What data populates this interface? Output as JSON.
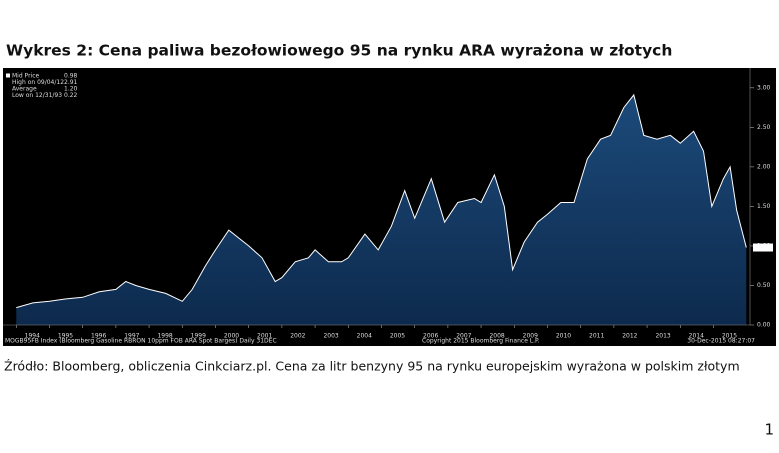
{
  "title": "Wykres 2: Cena paliwa bezołowiowego 95 na rynku ARA wyrażona w złotych",
  "chart_data": {
    "type": "area",
    "x": [
      1994.0,
      1994.5,
      1995.0,
      1995.5,
      1996.0,
      1996.5,
      1997.0,
      1997.3,
      1997.6,
      1998.0,
      1998.5,
      1999.0,
      1999.3,
      1999.7,
      2000.0,
      2000.4,
      2000.7,
      2001.0,
      2001.4,
      2001.8,
      2002.0,
      2002.4,
      2002.8,
      2003.0,
      2003.4,
      2003.8,
      2004.0,
      2004.5,
      2004.9,
      2005.3,
      2005.7,
      2006.0,
      2006.5,
      2006.9,
      2007.3,
      2007.8,
      2008.0,
      2008.4,
      2008.7,
      2008.95,
      2009.3,
      2009.7,
      2010.0,
      2010.4,
      2010.8,
      2011.2,
      2011.6,
      2011.9,
      2012.3,
      2012.6,
      2012.9,
      2013.3,
      2013.7,
      2014.0,
      2014.4,
      2014.7,
      2014.95,
      2015.3,
      2015.5,
      2015.7,
      2015.99
    ],
    "series": [
      {
        "name": "Mid Price",
        "color": "#ffffff",
        "values": [
          0.22,
          0.28,
          0.3,
          0.33,
          0.35,
          0.42,
          0.45,
          0.55,
          0.5,
          0.45,
          0.4,
          0.3,
          0.45,
          0.75,
          0.95,
          1.2,
          1.1,
          1.0,
          0.85,
          0.55,
          0.6,
          0.8,
          0.85,
          0.95,
          0.8,
          0.8,
          0.85,
          1.15,
          0.95,
          1.25,
          1.7,
          1.35,
          1.85,
          1.3,
          1.55,
          1.6,
          1.55,
          1.9,
          1.5,
          0.7,
          1.05,
          1.3,
          1.4,
          1.55,
          1.55,
          2.1,
          2.35,
          2.4,
          2.75,
          2.91,
          2.4,
          2.35,
          2.4,
          2.3,
          2.45,
          2.2,
          1.5,
          1.85,
          2.0,
          1.45,
          0.98
        ]
      }
    ],
    "xlim": [
      1993.6,
      2016.1
    ],
    "xticks": [
      {
        "value": 1994,
        "label": "1994"
      },
      {
        "value": 1995,
        "label": "1995"
      },
      {
        "value": 1996,
        "label": "1996"
      },
      {
        "value": 1997,
        "label": "1997"
      },
      {
        "value": 1998,
        "label": "1998"
      },
      {
        "value": 1999,
        "label": "1999"
      },
      {
        "value": 2000,
        "label": "2000"
      },
      {
        "value": 2001,
        "label": "2001"
      },
      {
        "value": 2002,
        "label": "2002"
      },
      {
        "value": 2003,
        "label": "2003"
      },
      {
        "value": 2004,
        "label": "2004"
      },
      {
        "value": 2005,
        "label": "2005"
      },
      {
        "value": 2006,
        "label": "2006"
      },
      {
        "value": 2007,
        "label": "2007"
      },
      {
        "value": 2008,
        "label": "2008"
      },
      {
        "value": 2009,
        "label": "2009"
      },
      {
        "value": 2010,
        "label": "2010"
      },
      {
        "value": 2011,
        "label": "2011"
      },
      {
        "value": 2012,
        "label": "2012"
      },
      {
        "value": 2013,
        "label": "2013"
      },
      {
        "value": 2014,
        "label": "2014"
      },
      {
        "value": 2015,
        "label": "2015"
      }
    ],
    "ylim": [
      0,
      3.2
    ],
    "yticks": [
      {
        "value": 0,
        "label": "0.00"
      },
      {
        "value": 0.5,
        "label": "0.50"
      },
      {
        "value": 1,
        "label": "1.00"
      },
      {
        "value": 1.5,
        "label": "1.50"
      },
      {
        "value": 2,
        "label": "2.00"
      },
      {
        "value": 2.5,
        "label": "2.50"
      },
      {
        "value": 3,
        "label": "3.00"
      }
    ],
    "fill_color": "#0d2a4d",
    "legend_items": [
      {
        "label": "Mid Price",
        "value": "0.98"
      },
      {
        "label": "High on 09/04/12",
        "value": "2.91"
      },
      {
        "label": "Average",
        "value": "1.20"
      },
      {
        "label": "Low on 12/31/93",
        "value": "0.22"
      }
    ],
    "footer_left": "MOGB95FB Index (Bloomberg Gasoline RBRON 10ppm FOB ARA Spot Barges)  Daily 31DEC",
    "footer_center": "Copyright 2015 Bloomberg Finance L.P.",
    "footer_right": "30-Dec-2015 08:27:07"
  },
  "source": "Źródło: Bloomberg, obliczenia Cinkciarz.pl. Cena za litr benzyny 95 na rynku europejskim wyrażona w polskim złotym",
  "page_number": "1"
}
